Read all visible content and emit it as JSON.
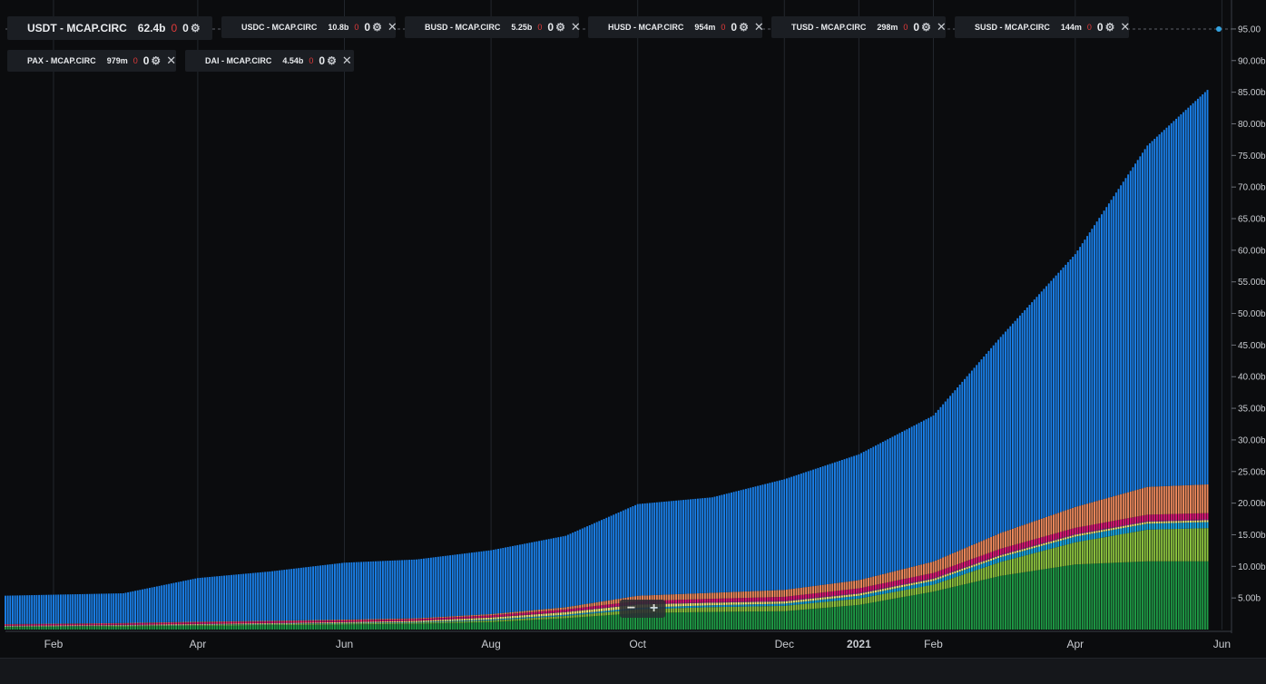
{
  "legend": [
    {
      "name": "USDT - MCAP.CIRC",
      "value": "62.4b",
      "change": "0",
      "count": "0",
      "color": "#1a7fe8",
      "main": true,
      "closable": false
    },
    {
      "name": "USDC - MCAP.CIRC",
      "value": "10.8b",
      "change": "0",
      "count": "0",
      "color": "#1e9a45",
      "main": false,
      "closable": true
    },
    {
      "name": "BUSD - MCAP.CIRC",
      "value": "5.25b",
      "change": "0",
      "count": "0",
      "color": "#8dc63f",
      "main": false,
      "closable": true
    },
    {
      "name": "HUSD - MCAP.CIRC",
      "value": "954m",
      "change": "0",
      "count": "0",
      "color": "#19a9e6",
      "main": false,
      "closable": true
    },
    {
      "name": "TUSD - MCAP.CIRC",
      "value": "298m",
      "change": "0",
      "count": "0",
      "color": "#f5ec79",
      "main": false,
      "closable": true
    },
    {
      "name": "SUSD - MCAP.CIRC",
      "value": "144m",
      "change": "0",
      "count": "0",
      "color": "#a93ba6",
      "main": false,
      "closable": true
    },
    {
      "name": "PAX - MCAP.CIRC",
      "value": "979m",
      "change": "0",
      "count": "0",
      "color": "#e0187a",
      "main": false,
      "closable": true
    },
    {
      "name": "DAI - MCAP.CIRC",
      "value": "4.54b",
      "change": "0",
      "count": "0",
      "color": "#ef8a5d",
      "main": false,
      "closable": true
    }
  ],
  "icons": {
    "gear": "gear-icon",
    "close": "close-icon",
    "zoom_out": "minus-icon",
    "zoom_in": "plus-icon"
  },
  "zoom": {
    "minus": "−",
    "plus": "+"
  },
  "chart_data": {
    "type": "bar",
    "stacked": true,
    "title": "",
    "ylim": [
      0,
      97
    ],
    "y_unit": "billions USD",
    "y_ticks": [
      "5.00b",
      "10.00b",
      "15.00b",
      "20.00b",
      "25.00b",
      "30.00b",
      "35.00b",
      "40.00b",
      "45.00b",
      "50.00b",
      "55.00b",
      "60.00b",
      "65.00b",
      "70.00b",
      "75.00b",
      "80.00b",
      "85.00b",
      "90.00b",
      "95.00"
    ],
    "x_ticks": [
      {
        "label": "Feb",
        "date": "2020-02-01",
        "bold": false
      },
      {
        "label": "Apr",
        "date": "2020-04-01",
        "bold": false
      },
      {
        "label": "Jun",
        "date": "2020-06-01",
        "bold": false
      },
      {
        "label": "Aug",
        "date": "2020-08-01",
        "bold": false
      },
      {
        "label": "Oct",
        "date": "2020-10-01",
        "bold": false
      },
      {
        "label": "Dec",
        "date": "2020-12-01",
        "bold": false
      },
      {
        "label": "2021",
        "date": "2021-01-01",
        "bold": true
      },
      {
        "label": "Feb",
        "date": "2021-02-01",
        "bold": false
      },
      {
        "label": "Apr",
        "date": "2021-04-01",
        "bold": false
      },
      {
        "label": "Jun",
        "date": "2021-06-01",
        "bold": false
      }
    ],
    "x_start": "2020-01-12",
    "x_end": "2021-06-05",
    "last_date": "2021-05-26",
    "reference_line": 95.0,
    "series_order": [
      "USDC",
      "BUSD",
      "HUSD",
      "TUSD",
      "SUSD",
      "PAX",
      "DAI",
      "USDT"
    ],
    "anchor_dates": [
      "2020-01-12",
      "2020-03-01",
      "2020-04-01",
      "2020-05-01",
      "2020-06-01",
      "2020-07-01",
      "2020-08-01",
      "2020-09-01",
      "2020-10-01",
      "2020-11-01",
      "2020-12-01",
      "2021-01-01",
      "2021-02-01",
      "2021-03-01",
      "2021-04-01",
      "2021-05-01",
      "2021-05-26"
    ],
    "series": [
      {
        "name": "USDC",
        "color": "#1e9a45",
        "values": [
          0.4,
          0.5,
          0.6,
          0.7,
          0.8,
          0.9,
          1.2,
          1.8,
          2.6,
          2.8,
          2.9,
          3.9,
          6.0,
          8.5,
          10.3,
          10.8,
          10.8
        ]
      },
      {
        "name": "BUSD",
        "color": "#8dc63f",
        "values": [
          0.05,
          0.08,
          0.1,
          0.12,
          0.15,
          0.18,
          0.25,
          0.35,
          0.6,
          0.75,
          0.85,
          1.0,
          1.1,
          2.2,
          3.5,
          5.0,
          5.25
        ]
      },
      {
        "name": "HUSD",
        "color": "#19a9e6",
        "values": [
          0.05,
          0.05,
          0.06,
          0.07,
          0.08,
          0.1,
          0.15,
          0.2,
          0.25,
          0.3,
          0.35,
          0.45,
          0.6,
          0.75,
          0.9,
          0.95,
          0.954
        ]
      },
      {
        "name": "TUSD",
        "color": "#f5ec79",
        "values": [
          0.1,
          0.1,
          0.12,
          0.13,
          0.15,
          0.2,
          0.3,
          0.4,
          0.5,
          0.4,
          0.35,
          0.33,
          0.32,
          0.3,
          0.3,
          0.3,
          0.298
        ]
      },
      {
        "name": "SUSD",
        "color": "#a93ba6",
        "values": [
          0.01,
          0.01,
          0.02,
          0.02,
          0.03,
          0.03,
          0.05,
          0.08,
          0.1,
          0.12,
          0.13,
          0.14,
          0.14,
          0.14,
          0.14,
          0.14,
          0.144
        ]
      },
      {
        "name": "PAX",
        "color": "#e0187a",
        "values": [
          0.2,
          0.22,
          0.25,
          0.25,
          0.25,
          0.25,
          0.3,
          0.35,
          0.45,
          0.5,
          0.6,
          0.7,
          0.8,
          0.9,
          0.95,
          0.98,
          0.979
        ]
      },
      {
        "name": "DAI",
        "color": "#ef8a5d",
        "values": [
          0.05,
          0.08,
          0.1,
          0.1,
          0.12,
          0.13,
          0.2,
          0.35,
          0.85,
          0.95,
          1.1,
          1.3,
          1.8,
          2.5,
          3.3,
          4.4,
          4.54
        ]
      },
      {
        "name": "USDT",
        "color": "#1a7fe8",
        "values": [
          4.5,
          4.7,
          6.9,
          7.8,
          9.0,
          9.3,
          10.1,
          11.3,
          14.5,
          15.1,
          17.5,
          19.9,
          23.1,
          31.0,
          40.0,
          54.0,
          62.4
        ]
      }
    ]
  }
}
